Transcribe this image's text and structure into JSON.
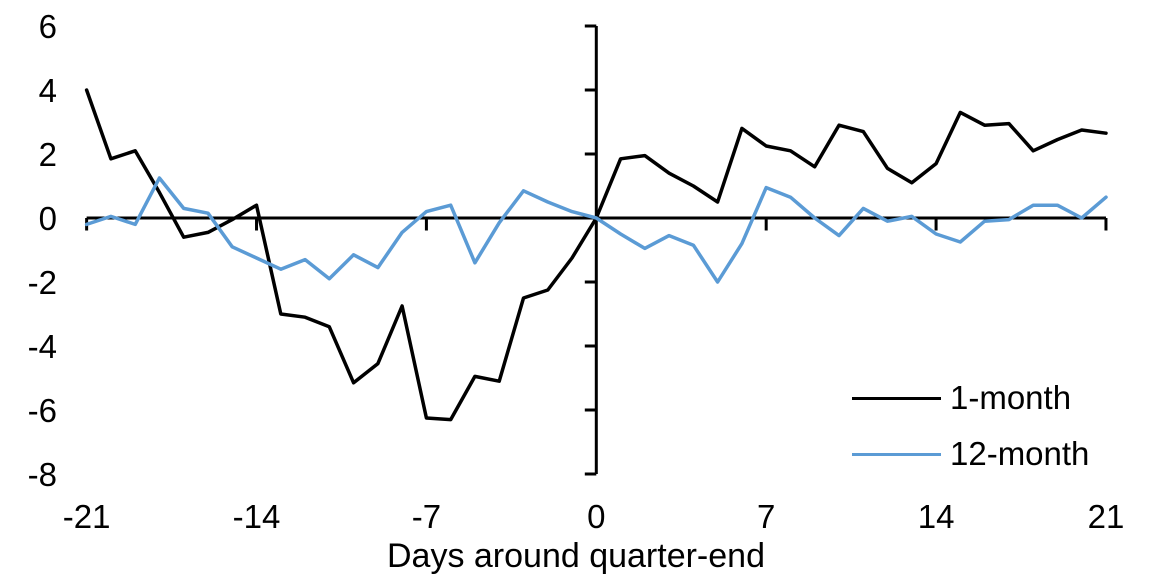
{
  "chart_data": {
    "type": "line",
    "title": "",
    "xlabel": "Days around quarter-end",
    "ylabel": "",
    "grid": false,
    "legend_position": "lower right",
    "axis_color": "#000000",
    "xlim": [
      -21,
      21
    ],
    "ylim": [
      -8,
      6
    ],
    "xticks": [
      -21,
      -14,
      -7,
      0,
      7,
      14,
      21
    ],
    "yticks": [
      6,
      4,
      2,
      0,
      -2,
      -4,
      -6,
      -8
    ],
    "x": [
      -21,
      -20,
      -19,
      -18,
      -17,
      -16,
      -15,
      -14,
      -13,
      -12,
      -11,
      -10,
      -9,
      -8,
      -7,
      -6,
      -5,
      -4,
      -3,
      -2,
      -1,
      0,
      1,
      2,
      3,
      4,
      5,
      6,
      7,
      8,
      9,
      10,
      11,
      12,
      13,
      14,
      15,
      16,
      17,
      18,
      19,
      20,
      21
    ],
    "series": [
      {
        "name": "1-month",
        "color": "#000000",
        "values": [
          4.0,
          1.85,
          2.1,
          0.8,
          -0.6,
          -0.45,
          -0.05,
          0.4,
          -3.0,
          -3.1,
          -3.4,
          -5.15,
          -4.55,
          -2.75,
          -6.25,
          -6.3,
          -4.95,
          -5.1,
          -2.5,
          -2.25,
          -1.25,
          0,
          1.85,
          1.95,
          1.4,
          1.0,
          0.5,
          2.8,
          2.25,
          2.1,
          1.6,
          2.9,
          2.7,
          1.55,
          1.1,
          1.7,
          3.3,
          2.9,
          2.95,
          2.1,
          2.45,
          2.75,
          2.65
        ]
      },
      {
        "name": "12-month",
        "color": "#5B9BD5",
        "values": [
          -0.2,
          0.05,
          -0.2,
          1.25,
          0.3,
          0.15,
          -0.9,
          -1.25,
          -1.6,
          -1.3,
          -1.9,
          -1.15,
          -1.55,
          -0.45,
          0.2,
          0.4,
          -1.4,
          -0.15,
          0.85,
          0.5,
          0.2,
          0,
          -0.5,
          -0.95,
          -0.55,
          -0.85,
          -2.0,
          -0.8,
          0.95,
          0.65,
          0.0,
          -0.55,
          0.3,
          -0.1,
          0.05,
          -0.5,
          -0.75,
          -0.1,
          -0.05,
          0.4,
          0.4,
          0.0,
          0.65
        ]
      }
    ]
  }
}
